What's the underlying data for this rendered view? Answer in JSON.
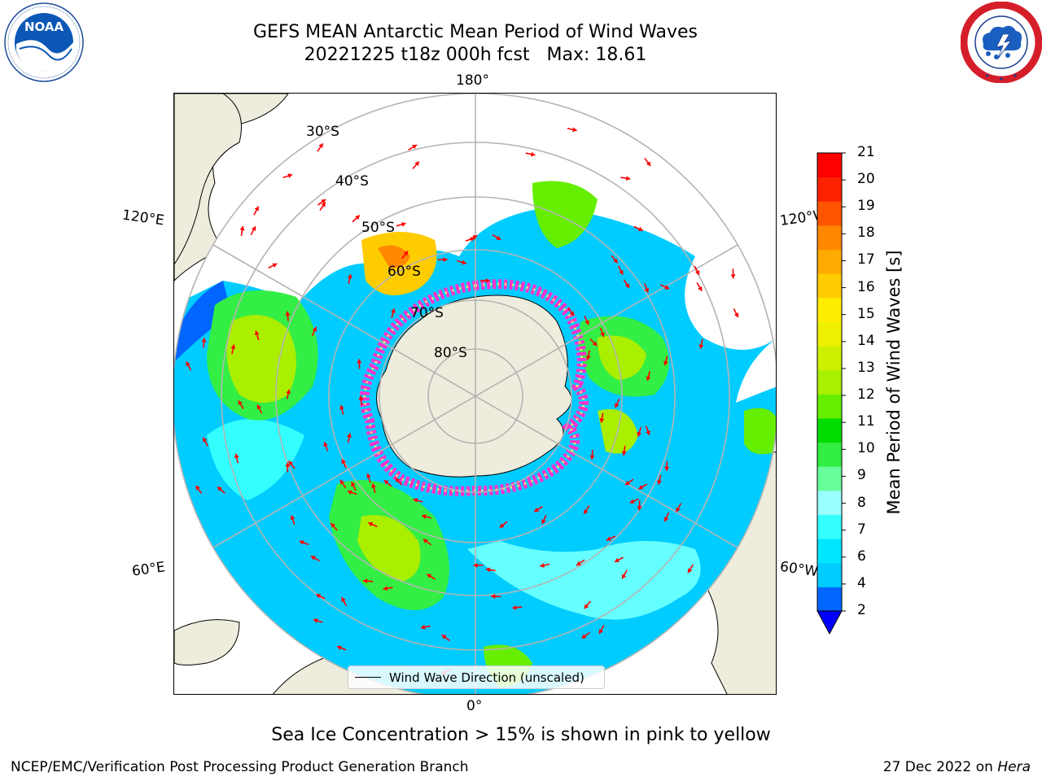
{
  "header": {
    "title_line1": "GEFS MEAN Antarctic Mean Period of Wind Waves",
    "title_line2": "20221225 t18z 000h fcst   Max: 18.61"
  },
  "logos": {
    "noaa": {
      "text": "NOAA",
      "ring_text": "NATIONAL OCEANIC AND ATMOSPHERIC ADMINISTRATION · U.S. DEPARTMENT OF COMMERCE"
    },
    "nws": {
      "ring_text": "NATIONAL WEATHER SERVICE"
    }
  },
  "map": {
    "lon_labels": {
      "top": "180°",
      "bottom": "0°",
      "upper_left": "120°E",
      "upper_right": "120°W",
      "lower_left": "60°E",
      "lower_right": "60°W"
    },
    "lat_labels": [
      "30°S",
      "40°S",
      "50°S",
      "60°S",
      "70°S",
      "80°S"
    ],
    "legend_label": "Wind Wave Direction (unscaled)",
    "colors": {
      "land": "#eeecdc",
      "ocean_missing": "#ffffff",
      "arrow": "#ff0000",
      "grid": "#b4b4b4",
      "sea_ice_low": "#ff33cc",
      "sea_ice_high": "#ffee66"
    }
  },
  "colorbar": {
    "title": "Mean Period of Wind Waves [s]",
    "ticks": [
      "21",
      "20",
      "19",
      "18",
      "17",
      "16",
      "15",
      "14",
      "13",
      "12",
      "11",
      "10",
      "9",
      "8",
      "7",
      "6",
      "4",
      "2"
    ],
    "colors_bottom_to_top": [
      "#0066ff",
      "#00ccff",
      "#00e6ff",
      "#33ffff",
      "#99ffff",
      "#66ff99",
      "#33ee44",
      "#00dd00",
      "#66ee00",
      "#aaee00",
      "#ccf000",
      "#eef000",
      "#ffee00",
      "#ffcc00",
      "#ffaa00",
      "#ff8800",
      "#ff5500",
      "#ff2200",
      "#ff0000"
    ],
    "under_color": "#0000ff"
  },
  "footer": {
    "note": "Sea Ice Concentration > 15% is shown in pink to yellow",
    "left": "NCEP/EMC/Verification Post Processing Product Generation Branch",
    "right_date": "27 Dec 2022 on ",
    "right_machine": "Hera"
  }
}
